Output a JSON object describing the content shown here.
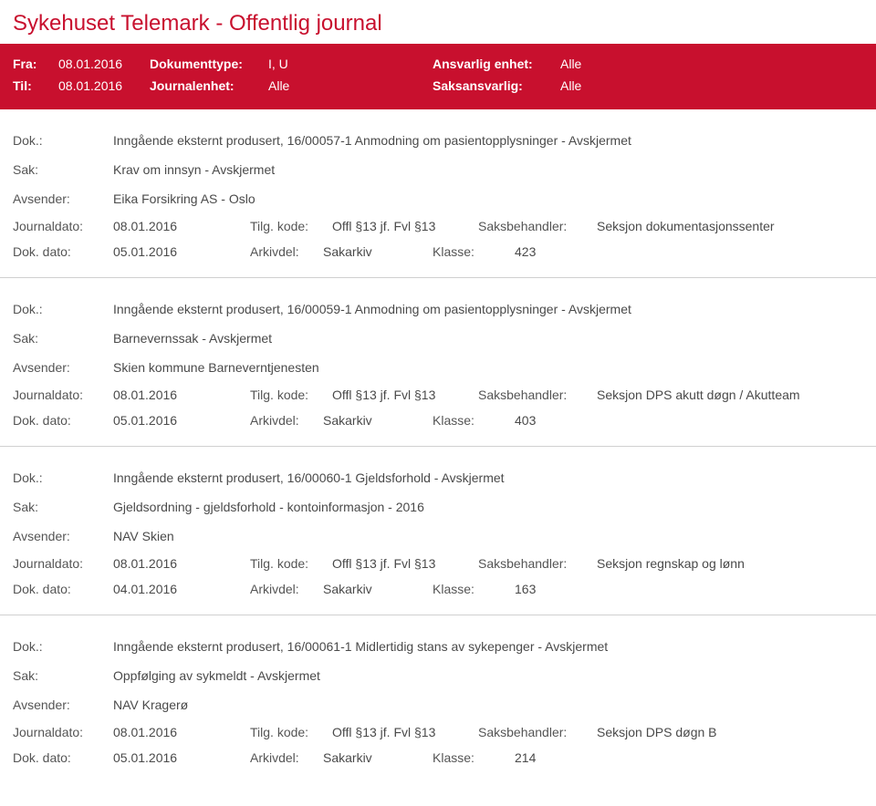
{
  "title": "Sykehuset Telemark - Offentlig journal",
  "header": {
    "fra_label": "Fra:",
    "fra_value": "08.01.2016",
    "til_label": "Til:",
    "til_value": "08.01.2016",
    "doktype_label": "Dokumenttype:",
    "doktype_value": "I, U",
    "journalenhet_label": "Journalenhet:",
    "journalenhet_value": "Alle",
    "ansvarlig_label": "Ansvarlig enhet:",
    "ansvarlig_value": "Alle",
    "saksansvarlig_label": "Saksansvarlig:",
    "saksansvarlig_value": "Alle"
  },
  "labels": {
    "dok": "Dok.:",
    "sak": "Sak:",
    "avsender": "Avsender:",
    "journaldato": "Journaldato:",
    "tilgkode": "Tilg. kode:",
    "saksbehandler": "Saksbehandler:",
    "dokdato": "Dok. dato:",
    "arkivdel": "Arkivdel:",
    "klasse": "Klasse:"
  },
  "entries": [
    {
      "dok": "Inngående eksternt produsert, 16/00057-1 Anmodning om pasientopplysninger - Avskjermet",
      "sak": "Krav om innsyn - Avskjermet",
      "avsender": "Eika Forsikring AS - Oslo",
      "journaldato": "08.01.2016",
      "tilgkode": "Offl §13 jf. Fvl §13",
      "saksbehandler": "Seksjon dokumentasjonssenter",
      "dokdato": "05.01.2016",
      "arkivdel": "Sakarkiv",
      "klasse": "423"
    },
    {
      "dok": "Inngående eksternt produsert, 16/00059-1 Anmodning om pasientopplysninger - Avskjermet",
      "sak": "Barnevernssak - Avskjermet",
      "avsender": "Skien kommune Barneverntjenesten",
      "journaldato": "08.01.2016",
      "tilgkode": "Offl §13 jf. Fvl §13",
      "saksbehandler": "Seksjon DPS akutt døgn / Akutteam",
      "dokdato": "05.01.2016",
      "arkivdel": "Sakarkiv",
      "klasse": "403"
    },
    {
      "dok": "Inngående eksternt produsert, 16/00060-1 Gjeldsforhold - Avskjermet",
      "sak": "Gjeldsordning - gjeldsforhold - kontoinformasjon - 2016",
      "avsender": "NAV Skien",
      "journaldato": "08.01.2016",
      "tilgkode": "Offl §13 jf. Fvl §13",
      "saksbehandler": "Seksjon regnskap og lønn",
      "dokdato": "04.01.2016",
      "arkivdel": "Sakarkiv",
      "klasse": "163"
    },
    {
      "dok": "Inngående eksternt produsert, 16/00061-1 Midlertidig stans av sykepenger - Avskjermet",
      "sak": "Oppfølging av sykmeldt - Avskjermet",
      "avsender": "NAV Kragerø",
      "journaldato": "08.01.2016",
      "tilgkode": "Offl §13 jf. Fvl §13",
      "saksbehandler": "Seksjon DPS døgn B",
      "dokdato": "05.01.2016",
      "arkivdel": "Sakarkiv",
      "klasse": "214"
    }
  ]
}
